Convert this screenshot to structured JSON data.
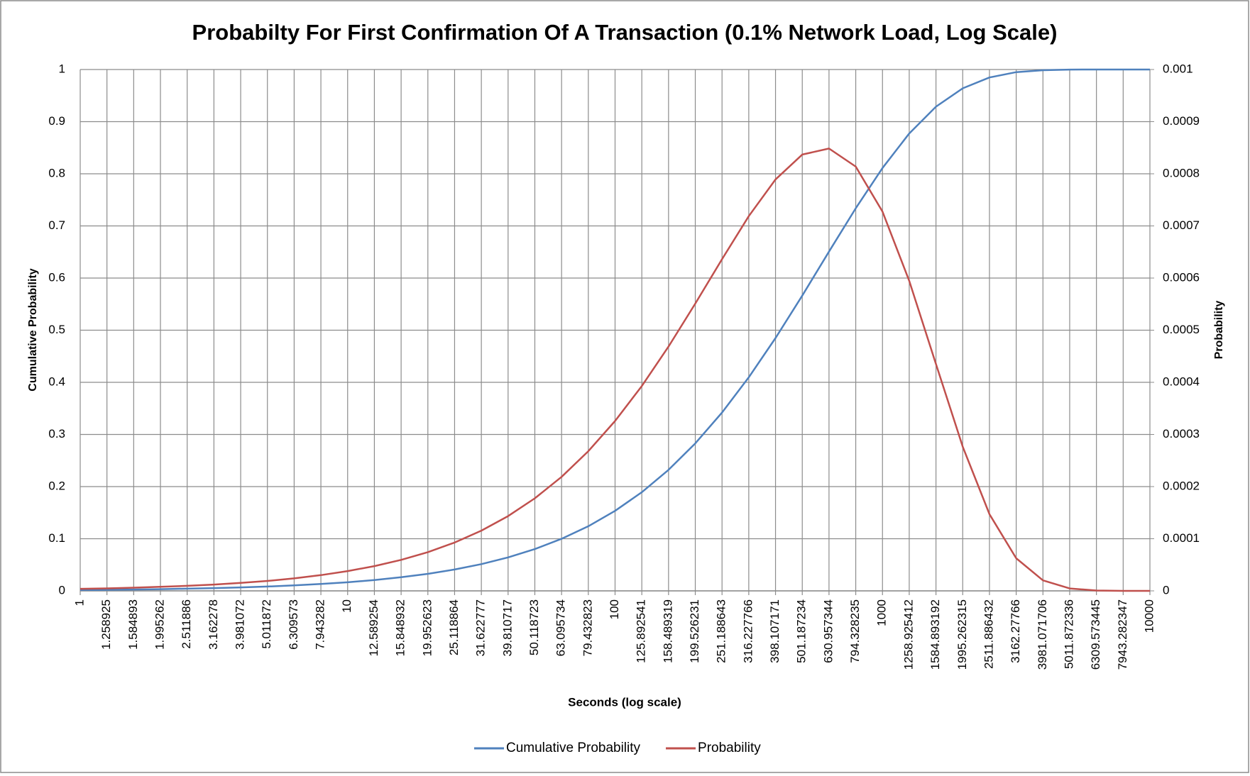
{
  "chart_data": {
    "type": "line",
    "title": "Probabilty For First Confirmation Of A Transaction (0.1% Network Load, Log Scale)",
    "xlabel": "Seconds (log scale)",
    "ylabel": "Cumulative Probability",
    "y2label": "Probability",
    "xscale": "log",
    "grid": true,
    "legend": "bottom",
    "xlim": [
      1,
      10000
    ],
    "xticks": [
      1,
      1.258925,
      1.584893,
      1.995262,
      2.511886,
      3.162278,
      3.981072,
      5.011872,
      6.309573,
      7.943282,
      10,
      12.589254,
      15.848932,
      19.952623,
      25.118864,
      31.622777,
      39.810717,
      50.118723,
      63.095734,
      79.432823,
      100,
      125.892541,
      158.489319,
      199.526231,
      251.188643,
      316.227766,
      398.107171,
      501.187234,
      630.957344,
      794.328235,
      1000,
      1258.925412,
      1584.893192,
      1995.262315,
      2511.886432,
      3162.27766,
      3981.071706,
      5011.872336,
      6309.573445,
      7943.282347,
      10000
    ],
    "ylim": [
      0,
      1
    ],
    "yticks": [
      0,
      0.1,
      0.2,
      0.3,
      0.4,
      0.5,
      0.6,
      0.7,
      0.8,
      0.9,
      1
    ],
    "y2lim": [
      0,
      0.001
    ],
    "y2ticks": [
      0,
      0.0001,
      0.0002,
      0.0003,
      0.0004,
      0.0005,
      0.0006,
      0.0007,
      0.0008,
      0.0009,
      0.001
    ],
    "x": [
      1,
      1.258925,
      1.584893,
      1.995262,
      2.511886,
      3.162278,
      3.981072,
      5.011872,
      6.309573,
      7.943282,
      10,
      12.589254,
      15.848932,
      19.952623,
      25.118864,
      31.622777,
      39.810717,
      50.118723,
      63.095734,
      79.432823,
      100,
      125.892541,
      158.489319,
      199.526231,
      251.188643,
      316.227766,
      398.107171,
      501.187234,
      630.957344,
      794.328235,
      1000,
      1258.925412,
      1584.893192,
      1995.262315,
      2511.886432,
      3162.27766,
      3981.071706,
      5011.872336,
      6309.573445,
      7943.282347,
      10000
    ],
    "series": [
      {
        "name": "Cumulative Probability",
        "color": "#4f81bd",
        "values": [
          0.0017,
          0.0021,
          0.0026,
          0.0033,
          0.0042,
          0.0053,
          0.0066,
          0.0083,
          0.0105,
          0.0132,
          0.0165,
          0.0208,
          0.0261,
          0.0327,
          0.041,
          0.0513,
          0.0642,
          0.0801,
          0.0998,
          0.124,
          0.1535,
          0.1893,
          0.2321,
          0.2829,
          0.3421,
          0.4096,
          0.485,
          0.5663,
          0.6507,
          0.7339,
          0.8111,
          0.8773,
          0.9287,
          0.964,
          0.9848,
          0.9949,
          0.9987,
          0.9998,
          1,
          1,
          1
        ]
      },
      {
        "name": "Probability",
        "color": "#c0504d",
        "axis": "y2",
        "values": [
          4e-06,
          4.8e-06,
          6.1e-06,
          7.7e-06,
          9.6e-06,
          1.21e-05,
          1.52e-05,
          1.91e-05,
          2.4e-05,
          3.02e-05,
          3.79e-05,
          4.75e-05,
          5.94e-05,
          7.43e-05,
          9.27e-05,
          0.0001155,
          0.0001434,
          0.0001775,
          0.0002187,
          0.0002679,
          0.0003259,
          0.0003929,
          0.0004686,
          0.000551,
          0.0006362,
          0.0007188,
          0.0007893,
          0.0008369,
          0.0008485,
          0.0008138,
          0.0007274,
          0.0005947,
          0.000435,
          0.0002765,
          0.000147,
          6.26e-05,
          2.01e-05,
          4.6e-06,
          7e-07,
          0,
          0
        ]
      }
    ]
  }
}
